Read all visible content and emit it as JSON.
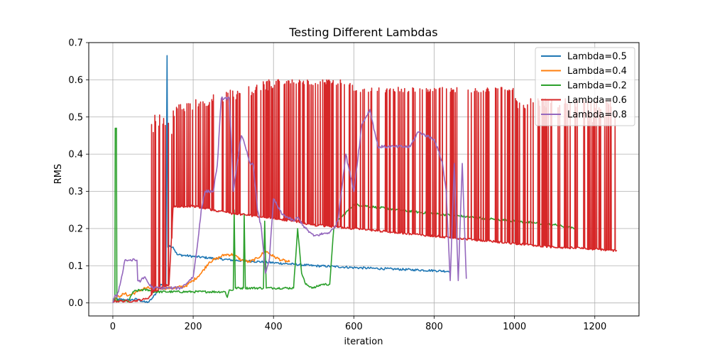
{
  "chart_data": {
    "type": "line",
    "title": "Testing Different Lambdas",
    "xlabel": "iteration",
    "ylabel": "RMS",
    "xlim": [
      -60,
      1310
    ],
    "ylim": [
      -0.035,
      0.7
    ],
    "xticks": [
      0,
      200,
      400,
      600,
      800,
      1000,
      1200
    ],
    "yticks": [
      0.0,
      0.1,
      0.2,
      0.3,
      0.4,
      0.5,
      0.6,
      0.7
    ],
    "grid": true,
    "legend_position": "top-right",
    "series": [
      {
        "name": "Lambda=0.5",
        "color": "#1f77b4",
        "noise": 0.003,
        "points": [
          [
            0,
            0.01
          ],
          [
            40,
            0.008
          ],
          [
            60,
            0.01
          ],
          [
            80,
            0.002
          ],
          [
            90,
            0.003
          ],
          [
            100,
            0.015
          ],
          [
            110,
            0.03
          ],
          [
            120,
            0.05
          ],
          [
            132,
            0.05
          ],
          [
            135,
            0.665
          ],
          [
            137,
            0.15
          ],
          [
            140,
            0.155
          ],
          [
            150,
            0.15
          ],
          [
            160,
            0.13
          ],
          [
            200,
            0.125
          ],
          [
            250,
            0.12
          ],
          [
            300,
            0.115
          ],
          [
            350,
            0.112
          ],
          [
            400,
            0.108
          ],
          [
            450,
            0.104
          ],
          [
            500,
            0.1
          ],
          [
            550,
            0.098
          ],
          [
            600,
            0.095
          ],
          [
            650,
            0.093
          ],
          [
            700,
            0.091
          ],
          [
            750,
            0.089
          ],
          [
            800,
            0.087
          ],
          [
            840,
            0.085
          ]
        ]
      },
      {
        "name": "Lambda=0.4",
        "color": "#ff7f0e",
        "noise": 0.004,
        "points": [
          [
            0,
            0.01
          ],
          [
            10,
            0.015
          ],
          [
            20,
            0.02
          ],
          [
            30,
            0.025
          ],
          [
            40,
            0.02
          ],
          [
            60,
            0.03
          ],
          [
            80,
            0.04
          ],
          [
            100,
            0.04
          ],
          [
            150,
            0.04
          ],
          [
            180,
            0.045
          ],
          [
            200,
            0.06
          ],
          [
            220,
            0.08
          ],
          [
            240,
            0.11
          ],
          [
            260,
            0.12
          ],
          [
            280,
            0.13
          ],
          [
            300,
            0.13
          ],
          [
            320,
            0.115
          ],
          [
            340,
            0.11
          ],
          [
            360,
            0.12
          ],
          [
            380,
            0.14
          ],
          [
            400,
            0.125
          ],
          [
            420,
            0.115
          ],
          [
            440,
            0.11
          ]
        ]
      },
      {
        "name": "Lambda=0.2",
        "color": "#2ca02c",
        "noise": 0.003,
        "points": [
          [
            0,
            0.005
          ],
          [
            5,
            0.005
          ],
          [
            6,
            0.47
          ],
          [
            9,
            0.47
          ],
          [
            10,
            0.005
          ],
          [
            40,
            0.005
          ],
          [
            50,
            0.03
          ],
          [
            70,
            0.035
          ],
          [
            90,
            0.035
          ],
          [
            100,
            0.03
          ],
          [
            150,
            0.03
          ],
          [
            200,
            0.03
          ],
          [
            280,
            0.03
          ],
          [
            285,
            0.015
          ],
          [
            290,
            0.035
          ],
          [
            300,
            0.035
          ],
          [
            302,
            0.25
          ],
          [
            305,
            0.04
          ],
          [
            325,
            0.04
          ],
          [
            327,
            0.24
          ],
          [
            330,
            0.04
          ],
          [
            375,
            0.04
          ],
          [
            378,
            0.22
          ],
          [
            382,
            0.04
          ],
          [
            400,
            0.04
          ],
          [
            450,
            0.04
          ],
          [
            460,
            0.2
          ],
          [
            470,
            0.08
          ],
          [
            480,
            0.05
          ],
          [
            500,
            0.04
          ],
          [
            520,
            0.05
          ],
          [
            540,
            0.05
          ],
          [
            550,
            0.2
          ],
          [
            560,
            0.22
          ],
          [
            600,
            0.265
          ],
          [
            650,
            0.258
          ],
          [
            700,
            0.252
          ],
          [
            750,
            0.245
          ],
          [
            800,
            0.24
          ],
          [
            850,
            0.235
          ],
          [
            900,
            0.23
          ],
          [
            950,
            0.225
          ],
          [
            1000,
            0.22
          ],
          [
            1050,
            0.215
          ],
          [
            1100,
            0.21
          ],
          [
            1150,
            0.2
          ]
        ]
      },
      {
        "name": "Lambda=0.6",
        "color": "#d62728",
        "noise": 0.003,
        "spikes": true,
        "points": [
          [
            0,
            0.005
          ],
          [
            50,
            0.005
          ],
          [
            80,
            0.01
          ],
          [
            90,
            0.015
          ],
          [
            100,
            0.03
          ],
          [
            120,
            0.04
          ],
          [
            140,
            0.05
          ],
          [
            150,
            0.26
          ],
          [
            200,
            0.26
          ],
          [
            250,
            0.25
          ],
          [
            300,
            0.24
          ],
          [
            350,
            0.235
          ],
          [
            400,
            0.228
          ],
          [
            450,
            0.22
          ],
          [
            500,
            0.21
          ],
          [
            550,
            0.205
          ],
          [
            600,
            0.2
          ],
          [
            650,
            0.195
          ],
          [
            700,
            0.19
          ],
          [
            750,
            0.185
          ],
          [
            800,
            0.18
          ],
          [
            850,
            0.175
          ],
          [
            900,
            0.17
          ],
          [
            950,
            0.165
          ],
          [
            1000,
            0.16
          ],
          [
            1050,
            0.155
          ],
          [
            1100,
            0.15
          ],
          [
            1150,
            0.148
          ],
          [
            1200,
            0.145
          ],
          [
            1255,
            0.14
          ]
        ]
      },
      {
        "name": "Lambda=0.8",
        "color": "#9467bd",
        "noise": 0.004,
        "points": [
          [
            0,
            0.0
          ],
          [
            5,
            0.02
          ],
          [
            10,
            0.015
          ],
          [
            20,
            0.06
          ],
          [
            30,
            0.115
          ],
          [
            60,
            0.115
          ],
          [
            62,
            0.06
          ],
          [
            70,
            0.06
          ],
          [
            80,
            0.07
          ],
          [
            90,
            0.05
          ],
          [
            100,
            0.04
          ],
          [
            150,
            0.04
          ],
          [
            170,
            0.04
          ],
          [
            180,
            0.05
          ],
          [
            190,
            0.06
          ],
          [
            200,
            0.07
          ],
          [
            210,
            0.15
          ],
          [
            220,
            0.25
          ],
          [
            230,
            0.3
          ],
          [
            250,
            0.3
          ],
          [
            260,
            0.37
          ],
          [
            270,
            0.55
          ],
          [
            290,
            0.55
          ],
          [
            300,
            0.3
          ],
          [
            310,
            0.38
          ],
          [
            320,
            0.45
          ],
          [
            330,
            0.42
          ],
          [
            340,
            0.38
          ],
          [
            350,
            0.37
          ],
          [
            360,
            0.25
          ],
          [
            370,
            0.2
          ],
          [
            380,
            0.08
          ],
          [
            390,
            0.12
          ],
          [
            400,
            0.28
          ],
          [
            420,
            0.24
          ],
          [
            450,
            0.22
          ],
          [
            460,
            0.23
          ],
          [
            480,
            0.2
          ],
          [
            500,
            0.18
          ],
          [
            540,
            0.19
          ],
          [
            550,
            0.2
          ],
          [
            560,
            0.22
          ],
          [
            580,
            0.4
          ],
          [
            600,
            0.3
          ],
          [
            620,
            0.48
          ],
          [
            640,
            0.52
          ],
          [
            660,
            0.42
          ],
          [
            700,
            0.42
          ],
          [
            740,
            0.42
          ],
          [
            760,
            0.46
          ],
          [
            780,
            0.45
          ],
          [
            800,
            0.44
          ],
          [
            820,
            0.38
          ],
          [
            830,
            0.3
          ],
          [
            840,
            0.06
          ],
          [
            850,
            0.375
          ],
          [
            860,
            0.06
          ],
          [
            870,
            0.375
          ],
          [
            880,
            0.065
          ]
        ]
      }
    ]
  }
}
